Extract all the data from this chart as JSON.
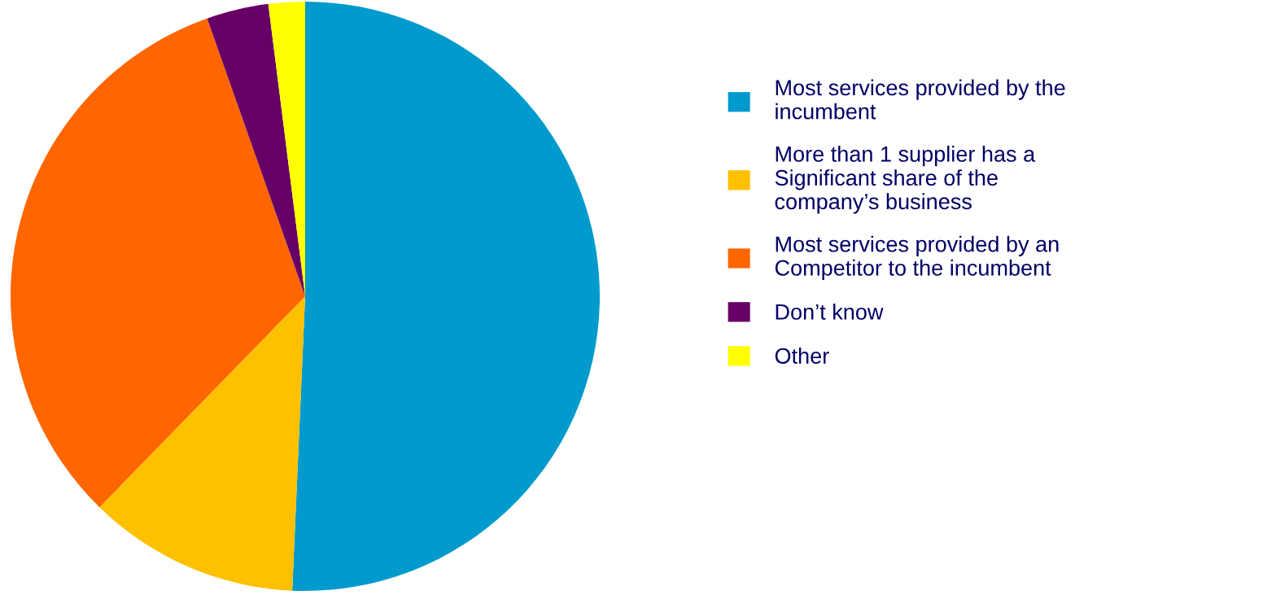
{
  "chart_data": {
    "type": "pie",
    "categories": [
      "Most services provided by the incumbent",
      "More than 1 supplier has a Significant share of the company’s business",
      "Most services provided by an Competitor to the incumbent",
      "Don’t know",
      "Other"
    ],
    "values": [
      50.7,
      11.6,
      32.3,
      3.4,
      2.0
    ],
    "colors": [
      "#009ACD",
      "#FFC000",
      "#FF6600",
      "#660066",
      "#FFFF00"
    ],
    "legend": "right"
  }
}
